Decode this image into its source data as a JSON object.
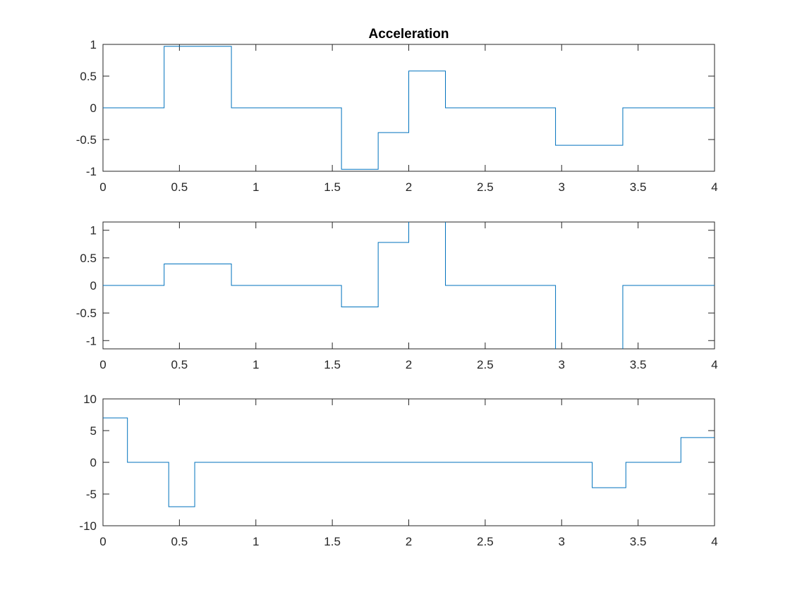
{
  "figure": {
    "background": "#ffffff",
    "axes_color": "#262626",
    "line_color": "#0072bd"
  },
  "chart_data": [
    {
      "type": "line",
      "step": "post",
      "title": "Acceleration",
      "xlabel": "",
      "ylabel": "",
      "xlim": [
        0,
        4
      ],
      "ylim": [
        -1,
        1
      ],
      "xticks": [
        0,
        0.5,
        1,
        1.5,
        2,
        2.5,
        3,
        3.5,
        4
      ],
      "xtick_labels": [
        "0",
        "0.5",
        "1",
        "1.5",
        "2",
        "2.5",
        "3",
        "3.5",
        "4"
      ],
      "yticks": [
        -1,
        -0.5,
        0,
        0.5,
        1
      ],
      "ytick_labels": [
        "-1",
        "-0.5",
        "0",
        "0.5",
        "1"
      ],
      "grid": false,
      "series": [
        {
          "x": [
            0,
            0.4,
            0.84,
            1.56,
            1.8,
            2.0,
            2.24,
            2.96,
            3.4,
            4.0
          ],
          "y": [
            0,
            0.97,
            0,
            -0.97,
            -0.39,
            0.58,
            0,
            -0.59,
            0,
            0
          ]
        }
      ]
    },
    {
      "type": "line",
      "step": "post",
      "title": "",
      "xlabel": "",
      "ylabel": "",
      "xlim": [
        0,
        4
      ],
      "ylim": [
        -1.15,
        1.15
      ],
      "xticks": [
        0,
        0.5,
        1,
        1.5,
        2,
        2.5,
        3,
        3.5,
        4
      ],
      "xtick_labels": [
        "0",
        "0.5",
        "1",
        "1.5",
        "2",
        "2.5",
        "3",
        "3.5",
        "4"
      ],
      "yticks": [
        -1,
        -0.5,
        0,
        0.5,
        1
      ],
      "ytick_labels": [
        "-1",
        "-0.5",
        "0",
        "0.5",
        "1"
      ],
      "grid": false,
      "series": [
        {
          "x": [
            0,
            0.4,
            0.84,
            1.56,
            1.8,
            2.0,
            2.24,
            2.96,
            3.4,
            4.0
          ],
          "y": [
            0,
            0.39,
            0,
            -0.39,
            0.78,
            1.17,
            0,
            -1.17,
            0,
            0
          ]
        }
      ]
    },
    {
      "type": "line",
      "step": "post",
      "title": "",
      "xlabel": "",
      "ylabel": "",
      "xlim": [
        0,
        4
      ],
      "ylim": [
        -10,
        10
      ],
      "xticks": [
        0,
        0.5,
        1,
        1.5,
        2,
        2.5,
        3,
        3.5,
        4
      ],
      "xtick_labels": [
        "0",
        "0.5",
        "1",
        "1.5",
        "2",
        "2.5",
        "3",
        "3.5",
        "4"
      ],
      "yticks": [
        -10,
        -5,
        0,
        5,
        10
      ],
      "ytick_labels": [
        "-10",
        "-5",
        "0",
        "5",
        "10"
      ],
      "grid": false,
      "series": [
        {
          "x": [
            0,
            0.16,
            0.43,
            0.6,
            3.2,
            3.42,
            3.78,
            4.0
          ],
          "y": [
            7,
            0,
            -7,
            0,
            -4,
            0,
            3.9,
            3.9
          ]
        }
      ]
    }
  ]
}
